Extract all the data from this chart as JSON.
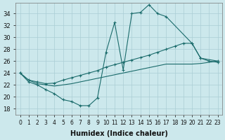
{
  "xlabel": "Humidex (Indice chaleur)",
  "bg_color": "#cce8ec",
  "line_color": "#1a6b6b",
  "grid_color": "#aacdd4",
  "xlim": [
    -0.5,
    23.5
  ],
  "ylim": [
    17.0,
    35.8
  ],
  "yticks": [
    18,
    20,
    22,
    24,
    26,
    28,
    30,
    32,
    34
  ],
  "xticks": [
    0,
    1,
    2,
    3,
    4,
    5,
    6,
    7,
    8,
    9,
    10,
    11,
    12,
    13,
    14,
    15,
    16,
    17,
    18,
    19,
    20,
    21,
    22,
    23
  ],
  "curve1_x": [
    0,
    1,
    2,
    3,
    4,
    5,
    6,
    7,
    8,
    9,
    10,
    11,
    12,
    13,
    14,
    15,
    16,
    17,
    20,
    21,
    23
  ],
  "curve1_y": [
    24.0,
    22.5,
    22.0,
    21.2,
    20.5,
    19.5,
    19.2,
    18.5,
    18.5,
    19.8,
    27.5,
    32.5,
    24.5,
    34.0,
    34.2,
    35.5,
    34.0,
    33.5,
    29.0,
    26.5,
    26.0
  ],
  "curve2_x": [
    0,
    1,
    2,
    3,
    4,
    5,
    6,
    7,
    8,
    9,
    10,
    11,
    12,
    13,
    14,
    15,
    16,
    17,
    18,
    19,
    20,
    21,
    22,
    23
  ],
  "curve2_y": [
    24.0,
    22.8,
    22.5,
    22.2,
    22.3,
    22.8,
    23.2,
    23.6,
    24.0,
    24.4,
    25.0,
    25.4,
    25.8,
    26.2,
    26.6,
    27.0,
    27.5,
    28.0,
    28.5,
    29.0,
    29.0,
    26.5,
    26.0,
    25.8
  ],
  "curve3_x": [
    0,
    1,
    2,
    3,
    4,
    5,
    6,
    7,
    8,
    9,
    10,
    11,
    12,
    13,
    14,
    15,
    16,
    17,
    18,
    19,
    20,
    21,
    22,
    23
  ],
  "curve3_y": [
    24.0,
    22.8,
    22.2,
    22.0,
    21.8,
    22.0,
    22.2,
    22.5,
    22.8,
    23.1,
    23.4,
    23.7,
    24.0,
    24.3,
    24.6,
    24.9,
    25.2,
    25.5,
    25.5,
    25.5,
    25.5,
    25.6,
    25.8,
    26.0
  ]
}
